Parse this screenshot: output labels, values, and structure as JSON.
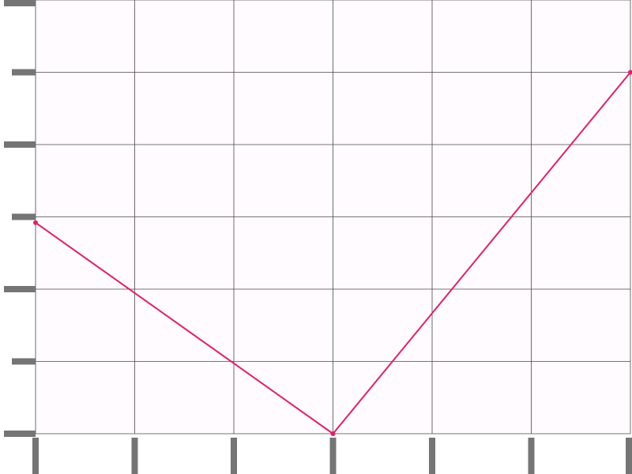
{
  "chart_data": {
    "type": "line",
    "title": "",
    "xlabel": "",
    "ylabel": "",
    "x": [
      0,
      1,
      2,
      3,
      4,
      5,
      6
    ],
    "xlim": [
      0,
      6
    ],
    "ylim": [
      0,
      6
    ],
    "xticks": [
      0,
      1,
      2,
      3,
      4,
      5,
      6
    ],
    "yticks": [
      0,
      1,
      2,
      3,
      4,
      5,
      6
    ],
    "grid": true,
    "legend": "none",
    "series": [
      {
        "x": [
          0,
          3,
          6
        ],
        "values": [
          2.92,
          0,
          5
        ],
        "color": "#e0206a"
      }
    ]
  }
}
